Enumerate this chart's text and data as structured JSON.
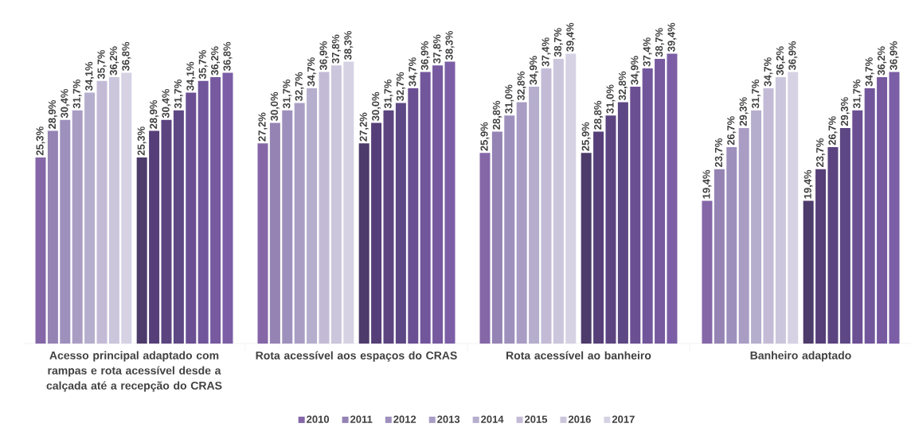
{
  "chart_data": {
    "type": "bar",
    "categories": [
      "Acesso principal adaptado com rampas e rota acessível desde a calçada até a recepção do CRAS",
      "Rota acessível aos espaços do CRAS",
      "Rota acessível ao banheiro",
      "Banheiro adaptado"
    ],
    "series": [
      {
        "name": "2010",
        "color": "#8567a8",
        "values": [
          25.3,
          27.2,
          25.9,
          19.4
        ],
        "value_labels": [
          "25,3%",
          "27,2%",
          "25,9%",
          "19,4%"
        ]
      },
      {
        "name": "2011",
        "color": "#9583b4",
        "values": [
          28.9,
          30.0,
          28.8,
          23.7
        ],
        "value_labels": [
          "28,9%",
          "30,0%",
          "28,8%",
          "23,7%"
        ]
      },
      {
        "name": "2012",
        "color": "#9e90bd",
        "values": [
          30.4,
          31.7,
          31.0,
          26.7
        ],
        "value_labels": [
          "30,4%",
          "31,7%",
          "31,0%",
          "26,7%"
        ]
      },
      {
        "name": "2013",
        "color": "#a99dc4",
        "values": [
          31.7,
          32.7,
          32.8,
          29.3
        ],
        "value_labels": [
          "31,7%",
          "32,7%",
          "32,8%",
          "29,3%"
        ]
      },
      {
        "name": "2014",
        "color": "#b6aecd",
        "values": [
          34.1,
          34.7,
          34.9,
          31.7
        ],
        "value_labels": [
          "34,1%",
          "34,7%",
          "34,9%",
          "31,7%"
        ]
      },
      {
        "name": "2015",
        "color": "#c3bbd6",
        "values": [
          35.7,
          36.9,
          37.4,
          34.7
        ],
        "value_labels": [
          "35,7%",
          "36,9%",
          "37,4%",
          "34,7%"
        ]
      },
      {
        "name": "2016",
        "color": "#cbc6dc",
        "values": [
          36.2,
          37.8,
          38.7,
          36.2
        ],
        "value_labels": [
          "36,2%",
          "37,8%",
          "38,7%",
          "36,2%"
        ]
      },
      {
        "name": "2017",
        "color": "#d6d2e4",
        "values": [
          36.8,
          38.3,
          39.4,
          36.9
        ],
        "value_labels": [
          "36,8%",
          "38,3%",
          "39,4%",
          "36,9%"
        ]
      },
      {
        "color": "#4d3b6b",
        "values": [
          25.3,
          27.2,
          25.9,
          19.4
        ],
        "value_labels": [
          "25,3%",
          "27,2%",
          "25,9%",
          "19,4%"
        ]
      },
      {
        "color": "#563f78",
        "values": [
          28.9,
          30.0,
          28.8,
          23.7
        ],
        "value_labels": [
          "28,9%",
          "30,0%",
          "28,8%",
          "23,7%"
        ]
      },
      {
        "color": "#5b4480",
        "values": [
          30.4,
          31.7,
          31.0,
          26.7
        ],
        "value_labels": [
          "30,4%",
          "31,7%",
          "31,0%",
          "26,7%"
        ]
      },
      {
        "color": "#5d4784",
        "values": [
          31.7,
          32.7,
          32.8,
          29.3
        ],
        "value_labels": [
          "31,7%",
          "32,7%",
          "32,8%",
          "29,3%"
        ]
      },
      {
        "color": "#6b4f93",
        "values": [
          34.1,
          34.7,
          34.9,
          31.7
        ],
        "value_labels": [
          "34,1%",
          "34,7%",
          "34,9%",
          "31,7%"
        ]
      },
      {
        "color": "#72569c",
        "values": [
          35.7,
          36.9,
          37.4,
          34.7
        ],
        "value_labels": [
          "35,7%",
          "36,9%",
          "37,4%",
          "34,7%"
        ]
      },
      {
        "color": "#76599f",
        "values": [
          36.2,
          37.8,
          38.7,
          36.2
        ],
        "value_labels": [
          "36,2%",
          "37,8%",
          "38,7%",
          "36,2%"
        ]
      },
      {
        "color": "#7b5ea5",
        "values": [
          36.8,
          38.3,
          39.4,
          36.9
        ],
        "value_labels": [
          "36,8%",
          "38,3%",
          "39,4%",
          "36,9%"
        ]
      }
    ],
    "legend": "bottom"
  }
}
